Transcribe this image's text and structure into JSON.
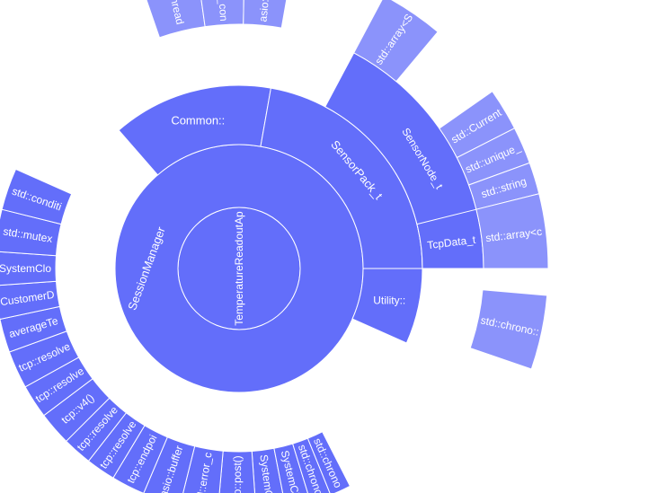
{
  "chart_data": {
    "type": "sunburst",
    "colors": {
      "level1": "#636efa",
      "level2": "#636efa",
      "level3": "#636efa",
      "level4": "#8b93fb"
    },
    "nodes": [
      {
        "id": "root",
        "label": "TemperatureReadoutApplication",
        "parent": "",
        "level": 1,
        "start": 0,
        "end": 360
      },
      {
        "id": "SessionManager",
        "label": "SessionManager",
        "parent": "root",
        "level": 2,
        "start": 0,
        "end": 360
      },
      {
        "id": "Common",
        "label": "Common::",
        "parent": "SessionManager",
        "level": 3,
        "start": 229,
        "end": 280
      },
      {
        "id": "SensorPack",
        "label": "SensorPack_t",
        "parent": "SessionManager",
        "level": 3,
        "start": 280,
        "end": 360
      },
      {
        "id": "Utility",
        "label": "Utility::",
        "parent": "SessionManager",
        "level": 3,
        "start": 0,
        "end": 24
      },
      {
        "id": "SensorNode",
        "label": "SensorNode_t",
        "parent": "SensorPack",
        "level": 4,
        "start": 298,
        "end": 360
      },
      {
        "id": "TcpData",
        "label": "TcpData_t",
        "parent": "SensorNode",
        "level": 4,
        "start": 346,
        "end": 360
      },
      {
        "id": "std_thread",
        "label": "std::thread",
        "parent": "Common",
        "level": 5,
        "start": 251,
        "end": 262
      },
      {
        "id": "asio_io_context",
        "label": "asio::io_context",
        "parent": "Common",
        "level": 5,
        "start": 262,
        "end": 271
      },
      {
        "id": "asio_executor",
        "label": "asio::executor_work_guard",
        "parent": "Common",
        "level": 5,
        "start": 271,
        "end": 280
      },
      {
        "id": "sp_array",
        "label": "std::array<SensorNode_t, N>",
        "parent": "SensorPack",
        "level": 5,
        "start": 298,
        "end": 310
      },
      {
        "id": "sn_current",
        "label": "std::CurrentTemperatureReading",
        "parent": "SensorNode",
        "level": 5,
        "start": 325,
        "end": 333
      },
      {
        "id": "sn_unique",
        "label": "std::unique_ptr<tcp::socket>",
        "parent": "SensorNode",
        "level": 5,
        "start": 333,
        "end": 340
      },
      {
        "id": "sn_string",
        "label": "std::string",
        "parent": "SensorNode",
        "level": 5,
        "start": 340,
        "end": 346
      },
      {
        "id": "tcp_array",
        "label": "std::array<char, M>",
        "parent": "TcpData",
        "level": 5,
        "start": 346,
        "end": 360
      },
      {
        "id": "ut_inner",
        "label": "std::chrono::steady_clock::time_point",
        "parent": "Utility",
        "level": 5,
        "start": 5,
        "end": 19
      },
      {
        "id": "sm_sysclock",
        "label": "SystemClock_t (system_clock)",
        "parent": "SessionManager",
        "level": 4,
        "start": 79,
        "end": 86
      },
      {
        "id": "sm_asio_post",
        "label": "asio::post()",
        "parent": "SessionManager",
        "level": 4,
        "start": 86,
        "end": 95
      },
      {
        "id": "sm_error_code",
        "label": "std::error_code",
        "parent": "SessionManager",
        "level": 4,
        "start": 95,
        "end": 104
      },
      {
        "id": "sm_asio_buffer",
        "label": "asio::buffer",
        "parent": "SessionManager",
        "level": 4,
        "start": 104,
        "end": 113
      },
      {
        "id": "sm_endpoint",
        "label": "tcp::endpoint",
        "parent": "SessionManager",
        "level": 4,
        "start": 113,
        "end": 121
      },
      {
        "id": "sm_resolver_iter",
        "label": "tcp::resolver::iterator",
        "parent": "SessionManager",
        "level": 4,
        "start": 121,
        "end": 128
      },
      {
        "id": "sm_resolver_iter2",
        "label": "tcp::resolver::iterator",
        "parent": "SessionManager",
        "level": 4,
        "start": 128,
        "end": 135
      },
      {
        "id": "sm_v4",
        "label": "tcp::v4()",
        "parent": "SessionManager",
        "level": 4,
        "start": 135,
        "end": 143
      },
      {
        "id": "sm_query",
        "label": "tcp::resolver::query",
        "parent": "SessionManager",
        "level": 4,
        "start": 143,
        "end": 151
      },
      {
        "id": "sm_resolver",
        "label": "tcp::resolver",
        "parent": "SessionManager",
        "level": 4,
        "start": 151,
        "end": 160
      },
      {
        "id": "sm_avgtemp",
        "label": "averageTemperature",
        "parent": "SessionManager",
        "level": 4,
        "start": 160,
        "end": 168
      },
      {
        "id": "sm_customer",
        "label": "CustomerDisplay",
        "parent": "SessionManager",
        "level": 4,
        "start": 168,
        "end": 176
      },
      {
        "id": "sm_sysclock2",
        "label": "SystemClock_t::time_point",
        "parent": "SessionManager",
        "level": 4,
        "start": 176,
        "end": 184
      },
      {
        "id": "sm_mutex",
        "label": "std::mutex",
        "parent": "SessionManager",
        "level": 4,
        "start": 184,
        "end": 194
      },
      {
        "id": "sm_condvar",
        "label": "std::condition_variable",
        "parent": "SessionManager",
        "level": 4,
        "start": 194,
        "end": 204
      },
      {
        "id": "sm_tail1",
        "label": "SystemClock_t::now()",
        "parent": "SessionManager",
        "level": 4,
        "start": 73,
        "end": 79
      },
      {
        "id": "sm_tail2",
        "label": "std::chrono::duration",
        "parent": "SessionManager",
        "level": 4,
        "start": 68,
        "end": 73
      },
      {
        "id": "sm_tail3",
        "label": "std::chrono::milliseconds",
        "parent": "SessionManager",
        "level": 4,
        "start": 63,
        "end": 68
      }
    ]
  }
}
